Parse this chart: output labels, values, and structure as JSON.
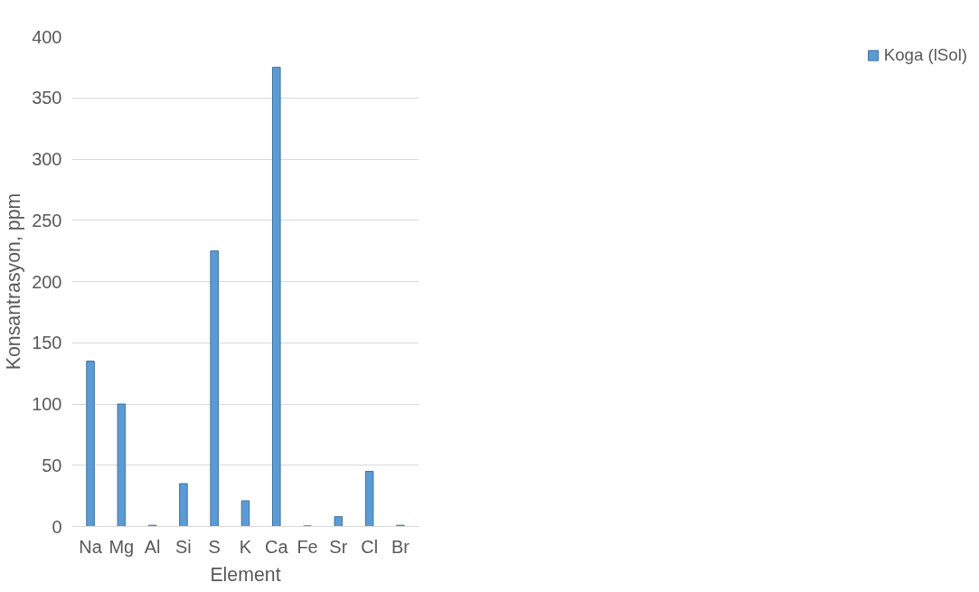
{
  "chart_data": {
    "type": "bar",
    "xlabel": "Element",
    "ylabel": "Konsantrasyon, ppm",
    "categories": [
      "Na",
      "Mg",
      "Al",
      "Si",
      "S",
      "K",
      "Ca",
      "Fe",
      "Sr",
      "Cl",
      "Br"
    ],
    "series": [
      {
        "name": "Koga (lSol)",
        "color": "#5b9bd5",
        "values": [
          135,
          100,
          1,
          35,
          225,
          21,
          375,
          0.5,
          8,
          45,
          1
        ]
      }
    ],
    "ylim": [
      0,
      400
    ],
    "yticks": [
      0,
      50,
      100,
      150,
      200,
      250,
      300,
      350,
      400
    ],
    "grid": "y",
    "legend": "right"
  }
}
